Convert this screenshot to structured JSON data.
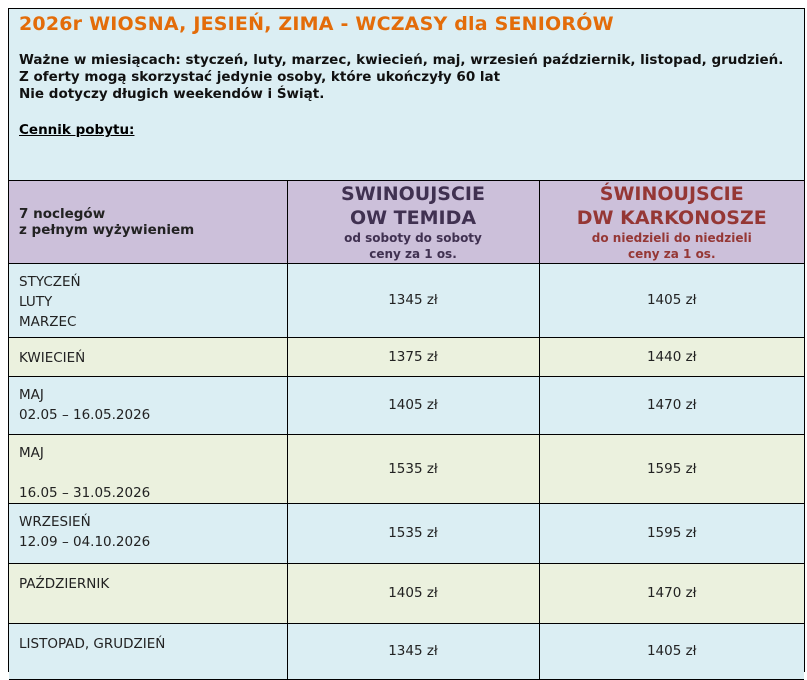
{
  "title": "2026r WIOSNA, JESIEŃ, ZIMA - WCZASY dla SENIORÓW",
  "notes": [
    "Ważne w miesiącach: styczeń, luty, marzec, kwiecień, maj, wrzesień październik, listopad, grudzień.",
    "Z oferty mogą skorzystać jedynie osoby, które ukończyły 60 lat",
    "Nie dotyczy długich weekendów i Świąt."
  ],
  "cennik_label": "Cennik pobytu:",
  "table": {
    "header": {
      "label_line1": "7 noclegów",
      "label_line2": "z pełnym wyżywieniem",
      "col1": {
        "line1": "SWINOUJSCIE",
        "line2": "OW TEMIDA",
        "sub1": "od soboty do soboty",
        "sub2": "ceny za 1 os.",
        "color": "#403151"
      },
      "col2": {
        "line1": "ŚWINOUJSCIE",
        "line2": "DW KARKONOSZE",
        "sub1": "do niedzieli do niedzieli",
        "sub2": "ceny za 1 os.",
        "color": "#953735"
      }
    },
    "rows": [
      {
        "period": [
          "STYCZEŃ",
          "LUTY",
          "MARZEC"
        ],
        "temida": "1345 zł",
        "karkonosze": "1405 zł"
      },
      {
        "period": [
          "KWIECIEŃ"
        ],
        "temida": "1375 zł",
        "karkonosze": "1440 zł"
      },
      {
        "period": [
          "MAJ",
          "02.05 – 16.05.2026"
        ],
        "temida": "1405 zł",
        "karkonosze": "1470 zł"
      },
      {
        "period": [
          "MAJ",
          "",
          "16.05 – 31.05.2026"
        ],
        "temida": "1535 zł",
        "karkonosze": "1595 zł"
      },
      {
        "period": [
          "WRZESIEŃ",
          "12.09 – 04.10.2026"
        ],
        "temida": "1535 zł",
        "karkonosze": "1595 zł"
      },
      {
        "period": [
          "PAŹDZIERNIK"
        ],
        "temida": "1405 zł",
        "karkonosze": "1470 zł"
      },
      {
        "period": [
          "LISTOPAD, GRUDZIEŃ"
        ],
        "temida": "1345 zł",
        "karkonosze": "1405 zł"
      }
    ]
  },
  "colors": {
    "title": "#e36c09",
    "intro_bg": "#dbeef3",
    "header_bg": "#ccc0da",
    "row_blue": "#dbeef3",
    "row_green": "#ebf1de"
  }
}
